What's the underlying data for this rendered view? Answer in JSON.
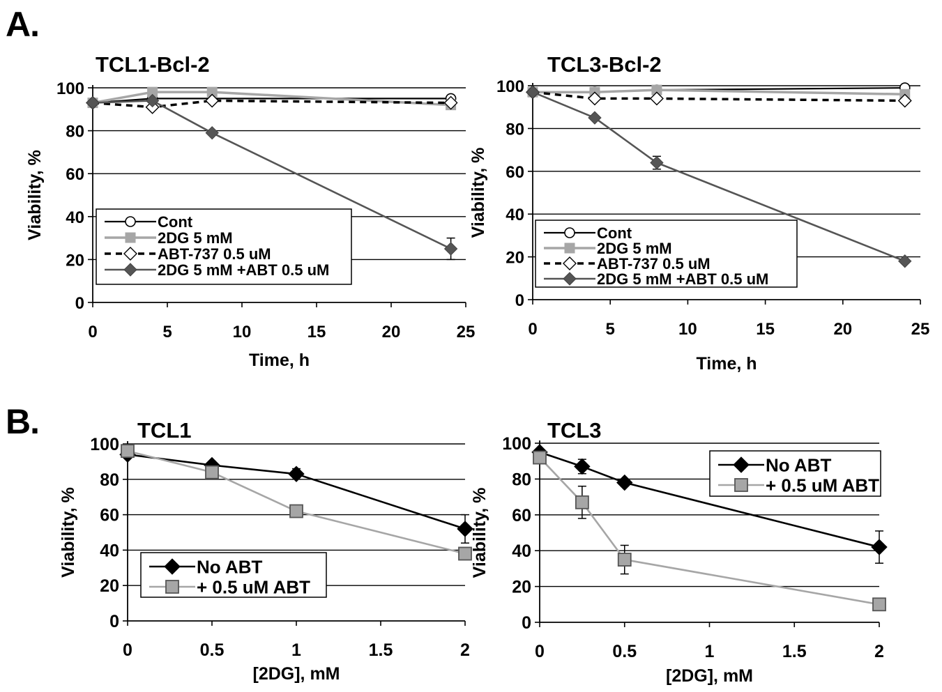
{
  "figure": {
    "panel_a_label": "A.",
    "panel_b_label": "B."
  },
  "colors": {
    "cont": "#000000",
    "dg": "#a6a6a6",
    "abt": "#000000",
    "combo": "#555555",
    "no_abt": "#000000",
    "plus_abt": "#a6a6a6",
    "grid": "#000000"
  },
  "chart_data": [
    {
      "id": "tcl1-bcl2",
      "type": "line",
      "title": "TCL1-Bcl-2",
      "xlabel": "Time, h",
      "ylabel": "Viability, %",
      "xlim": [
        0,
        25
      ],
      "ylim": [
        0,
        100
      ],
      "xticks": [
        0,
        5,
        10,
        15,
        20,
        25
      ],
      "yticks": [
        0,
        20,
        40,
        60,
        80,
        100
      ],
      "grid": "horizontal",
      "legend": "bottom-left",
      "series": [
        {
          "name": "Cont",
          "style": "cont",
          "x": [
            0,
            4,
            24
          ],
          "y": [
            93,
            95,
            95
          ]
        },
        {
          "name": "2DG 5 mM",
          "style": "dg",
          "x": [
            0,
            4,
            8,
            24
          ],
          "y": [
            93,
            98,
            98,
            92
          ]
        },
        {
          "name": "ABT-737 0.5 uM",
          "style": "abt",
          "x": [
            0,
            4,
            8,
            24
          ],
          "y": [
            93,
            91,
            94,
            93
          ]
        },
        {
          "name": "2DG 5 mM +ABT 0.5 uM",
          "style": "combo",
          "x": [
            0,
            4,
            8,
            24
          ],
          "y": [
            93,
            94,
            79,
            25
          ],
          "err": [
            0,
            0,
            0,
            5
          ]
        }
      ]
    },
    {
      "id": "tcl3-bcl2",
      "type": "line",
      "title": "TCL3-Bcl-2",
      "xlabel": "Time, h",
      "ylabel": "Viability, %",
      "xlim": [
        0,
        25
      ],
      "ylim": [
        0,
        100
      ],
      "xticks": [
        0,
        5,
        10,
        15,
        20,
        25
      ],
      "yticks": [
        0,
        20,
        40,
        60,
        80,
        100
      ],
      "grid": "horizontal",
      "legend": "bottom-left",
      "series": [
        {
          "name": "Cont",
          "style": "cont",
          "x": [
            0,
            4,
            8,
            24
          ],
          "y": [
            97,
            97,
            98,
            99
          ]
        },
        {
          "name": "2DG 5 mM",
          "style": "dg",
          "x": [
            0,
            4,
            8,
            24
          ],
          "y": [
            97,
            97,
            98,
            96
          ]
        },
        {
          "name": "ABT-737 0.5 uM",
          "style": "abt",
          "x": [
            0,
            4,
            8,
            24
          ],
          "y": [
            97,
            94,
            94,
            93
          ]
        },
        {
          "name": "2DG 5 mM +ABT 0.5 uM",
          "style": "combo",
          "x": [
            0,
            4,
            8,
            24
          ],
          "y": [
            97,
            85,
            64,
            18
          ],
          "err": [
            0,
            0,
            3,
            0
          ]
        }
      ]
    },
    {
      "id": "tcl1",
      "type": "line",
      "title": "TCL1",
      "xlabel": "[2DG], mM",
      "ylabel": "Viability, %",
      "xlim": [
        0,
        2
      ],
      "ylim": [
        0,
        100
      ],
      "xticks": [
        0,
        0.5,
        1,
        1.5,
        2
      ],
      "yticks": [
        0,
        20,
        40,
        60,
        80,
        100
      ],
      "grid": "horizontal",
      "legend": "bottom-left",
      "series": [
        {
          "name": "No ABT",
          "style": "no_abt",
          "x": [
            0,
            0.5,
            1,
            2
          ],
          "y": [
            94,
            88,
            83,
            52
          ],
          "err": [
            0,
            0,
            3,
            8
          ]
        },
        {
          "name": "+ 0.5 uM ABT",
          "style": "plus_abt",
          "x": [
            0,
            0.5,
            1,
            2
          ],
          "y": [
            96,
            84,
            62,
            38
          ],
          "err": [
            0,
            0,
            0,
            0
          ]
        }
      ]
    },
    {
      "id": "tcl3",
      "type": "line",
      "title": "TCL3",
      "xlabel": "[2DG], mM",
      "ylabel": "Viability, %",
      "xlim": [
        0,
        2
      ],
      "ylim": [
        0,
        100
      ],
      "xticks": [
        0,
        0.5,
        1,
        1.5,
        2
      ],
      "yticks": [
        0,
        20,
        40,
        60,
        80,
        100
      ],
      "grid": "horizontal",
      "legend": "top-right",
      "series": [
        {
          "name": "No ABT",
          "style": "no_abt",
          "x": [
            0,
            0.25,
            0.5,
            2
          ],
          "y": [
            95,
            87,
            78,
            42
          ],
          "err": [
            0,
            4,
            0,
            9
          ]
        },
        {
          "name": "+ 0.5 uM ABT",
          "style": "plus_abt",
          "x": [
            0,
            0.25,
            0.5,
            2
          ],
          "y": [
            92,
            67,
            35,
            10
          ],
          "err": [
            0,
            9,
            8,
            0
          ]
        }
      ]
    }
  ]
}
